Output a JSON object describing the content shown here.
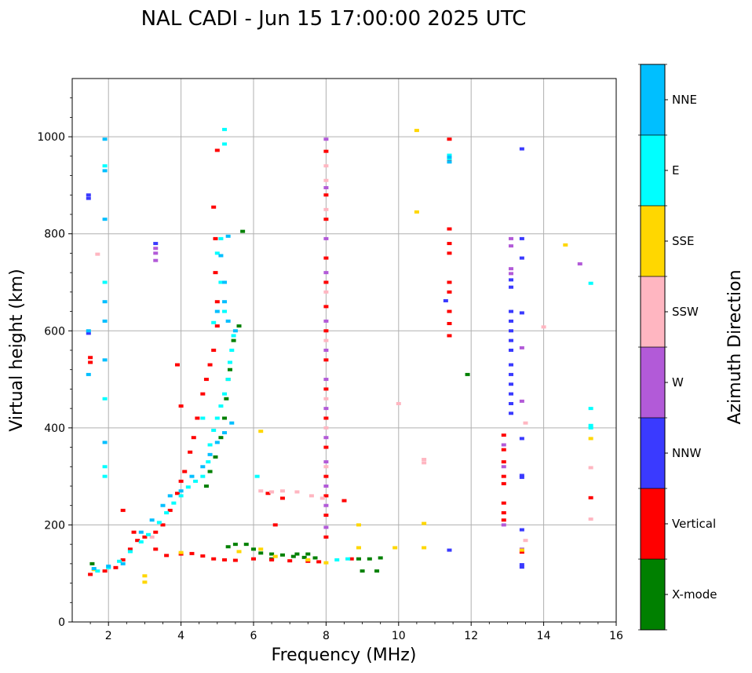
{
  "chart_data": {
    "type": "scatter",
    "title": "NAL CADI - Jun 15 17:00:00 2025 UTC",
    "xlabel": "Frequency (MHz)",
    "ylabel": "Virtual height (km)",
    "xlim": [
      1,
      16
    ],
    "ylim": [
      0,
      1120
    ],
    "xticks": [
      2,
      4,
      6,
      8,
      10,
      12,
      14,
      16
    ],
    "yticks": [
      0,
      200,
      400,
      600,
      800,
      1000
    ],
    "grid": true,
    "colorbar": {
      "title": "Azimuth Direction",
      "categories": [
        {
          "label": "X-mode",
          "color": "#008000"
        },
        {
          "label": "Vertical",
          "color": "#ff0000"
        },
        {
          "label": "NNW",
          "color": "#3a3aff"
        },
        {
          "label": "W",
          "color": "#b25ad8"
        },
        {
          "label": "SSW",
          "color": "#ffb6c1"
        },
        {
          "label": "SSE",
          "color": "#ffd700"
        },
        {
          "label": "E",
          "color": "#00ffff"
        },
        {
          "label": "NNE",
          "color": "#00bfff"
        }
      ]
    },
    "series": [
      {
        "name": "X-mode",
        "points": [
          [
            5.3,
            155
          ],
          [
            5.5,
            160
          ],
          [
            5.8,
            160
          ],
          [
            6.0,
            150
          ],
          [
            6.2,
            142
          ],
          [
            6.5,
            140
          ],
          [
            6.8,
            138
          ],
          [
            7.1,
            135
          ],
          [
            7.4,
            133
          ],
          [
            7.7,
            132
          ],
          [
            8.9,
            130
          ],
          [
            9.2,
            130
          ],
          [
            9.5,
            132
          ],
          [
            9.0,
            105
          ],
          [
            9.4,
            105
          ],
          [
            7.2,
            140
          ],
          [
            7.5,
            140
          ],
          [
            5.45,
            580
          ],
          [
            5.6,
            610
          ],
          [
            5.35,
            520
          ],
          [
            5.25,
            460
          ],
          [
            5.2,
            420
          ],
          [
            5.1,
            380
          ],
          [
            5.3,
            500
          ],
          [
            4.95,
            340
          ],
          [
            4.8,
            310
          ],
          [
            4.7,
            280
          ],
          [
            5.7,
            805
          ],
          [
            11.9,
            510
          ],
          [
            1.55,
            120
          ],
          [
            6.5,
            130
          ]
        ]
      },
      {
        "name": "Vertical",
        "points": [
          [
            1.5,
            98
          ],
          [
            1.9,
            105
          ],
          [
            2.2,
            112
          ],
          [
            2.4,
            128
          ],
          [
            2.6,
            150
          ],
          [
            2.8,
            168
          ],
          [
            3.0,
            175
          ],
          [
            3.3,
            185
          ],
          [
            3.5,
            200
          ],
          [
            3.7,
            230
          ],
          [
            3.9,
            265
          ],
          [
            4.0,
            290
          ],
          [
            4.1,
            310
          ],
          [
            4.25,
            350
          ],
          [
            4.35,
            380
          ],
          [
            4.45,
            420
          ],
          [
            4.6,
            470
          ],
          [
            4.7,
            500
          ],
          [
            4.8,
            530
          ],
          [
            4.9,
            560
          ],
          [
            5.0,
            610
          ],
          [
            5.0,
            660
          ],
          [
            4.95,
            720
          ],
          [
            4.95,
            790
          ],
          [
            4.9,
            855
          ],
          [
            5.0,
            972
          ],
          [
            3.9,
            530
          ],
          [
            4.0,
            445
          ],
          [
            3.6,
            137
          ],
          [
            4.0,
            140
          ],
          [
            4.3,
            141
          ],
          [
            4.6,
            136
          ],
          [
            4.9,
            130
          ],
          [
            5.2,
            128
          ],
          [
            5.5,
            127
          ],
          [
            6.0,
            130
          ],
          [
            6.5,
            128
          ],
          [
            7.0,
            126
          ],
          [
            7.5,
            125
          ],
          [
            7.8,
            124
          ],
          [
            8.7,
            130
          ],
          [
            8.5,
            250
          ],
          [
            6.4,
            265
          ],
          [
            6.8,
            255
          ],
          [
            6.6,
            200
          ],
          [
            2.4,
            230
          ],
          [
            2.7,
            185
          ],
          [
            3.3,
            150
          ],
          [
            11.4,
            995
          ],
          [
            11.4,
            950
          ],
          [
            11.4,
            810
          ],
          [
            11.4,
            780
          ],
          [
            11.4,
            760
          ],
          [
            11.4,
            700
          ],
          [
            11.4,
            680
          ],
          [
            11.4,
            640
          ],
          [
            11.4,
            615
          ],
          [
            11.4,
            590
          ],
          [
            12.9,
            385
          ],
          [
            12.9,
            355
          ],
          [
            12.9,
            330
          ],
          [
            12.9,
            300
          ],
          [
            12.9,
            285
          ],
          [
            12.9,
            245
          ],
          [
            12.9,
            225
          ],
          [
            12.9,
            210
          ],
          [
            1.5,
            545
          ],
          [
            1.5,
            535
          ],
          [
            15.3,
            256
          ],
          [
            13.4,
            144
          ],
          [
            8.0,
            970
          ],
          [
            8.0,
            880
          ],
          [
            8.0,
            830
          ],
          [
            8.0,
            750
          ],
          [
            8.0,
            700
          ],
          [
            8.0,
            650
          ],
          [
            8.0,
            600
          ],
          [
            8.0,
            540
          ],
          [
            8.0,
            480
          ],
          [
            8.0,
            420
          ],
          [
            8.0,
            360
          ],
          [
            8.0,
            300
          ],
          [
            8.0,
            260
          ],
          [
            8.0,
            220
          ],
          [
            8.0,
            175
          ]
        ]
      },
      {
        "name": "NNW",
        "points": [
          [
            1.45,
            880
          ],
          [
            1.45,
            873
          ],
          [
            1.45,
            595
          ],
          [
            3.3,
            780
          ],
          [
            13.1,
            640
          ],
          [
            13.1,
            620
          ],
          [
            13.1,
            600
          ],
          [
            13.1,
            580
          ],
          [
            13.1,
            560
          ],
          [
            13.1,
            530
          ],
          [
            13.1,
            510
          ],
          [
            13.1,
            490
          ],
          [
            13.1,
            470
          ],
          [
            13.1,
            450
          ],
          [
            13.1,
            430
          ],
          [
            13.1,
            705
          ],
          [
            13.1,
            690
          ],
          [
            13.4,
            975
          ],
          [
            13.4,
            790
          ],
          [
            13.4,
            750
          ],
          [
            13.4,
            637
          ],
          [
            13.4,
            378
          ],
          [
            13.4,
            302
          ],
          [
            13.4,
            298
          ],
          [
            13.4,
            190
          ],
          [
            13.4,
            118
          ],
          [
            13.4,
            113
          ],
          [
            11.3,
            662
          ],
          [
            11.4,
            148
          ]
        ]
      },
      {
        "name": "W",
        "points": [
          [
            3.3,
            770
          ],
          [
            3.3,
            760
          ],
          [
            3.3,
            745
          ],
          [
            13.1,
            790
          ],
          [
            13.1,
            775
          ],
          [
            13.1,
            728
          ],
          [
            13.1,
            718
          ],
          [
            13.4,
            565
          ],
          [
            13.4,
            455
          ],
          [
            13.4,
            150
          ],
          [
            12.9,
            365
          ],
          [
            12.9,
            320
          ],
          [
            12.9,
            200
          ],
          [
            15.0,
            738
          ],
          [
            8.0,
            995
          ],
          [
            8.0,
            895
          ],
          [
            8.0,
            790
          ],
          [
            8.0,
            720
          ],
          [
            8.0,
            620
          ],
          [
            8.0,
            560
          ],
          [
            8.0,
            500
          ],
          [
            8.0,
            440
          ],
          [
            8.0,
            380
          ],
          [
            8.0,
            330
          ],
          [
            8.0,
            280
          ],
          [
            8.0,
            240
          ],
          [
            8.0,
            195
          ]
        ]
      },
      {
        "name": "SSW",
        "points": [
          [
            1.7,
            758
          ],
          [
            3.2,
            175
          ],
          [
            6.2,
            270
          ],
          [
            6.5,
            268
          ],
          [
            6.8,
            270
          ],
          [
            7.2,
            268
          ],
          [
            7.6,
            260
          ],
          [
            7.9,
            255
          ],
          [
            10.0,
            450
          ],
          [
            10.7,
            335
          ],
          [
            10.7,
            328
          ],
          [
            13.5,
            410
          ],
          [
            13.5,
            168
          ],
          [
            14.0,
            608
          ],
          [
            15.3,
            318
          ],
          [
            15.3,
            212
          ],
          [
            8.0,
            940
          ],
          [
            8.0,
            910
          ],
          [
            8.0,
            850
          ],
          [
            8.0,
            680
          ],
          [
            8.0,
            580
          ],
          [
            8.0,
            460
          ],
          [
            8.0,
            400
          ],
          [
            8.0,
            320
          ]
        ]
      },
      {
        "name": "SSE",
        "points": [
          [
            1.6,
            108
          ],
          [
            3.0,
            95
          ],
          [
            3.0,
            82
          ],
          [
            4.0,
            143
          ],
          [
            6.2,
            393
          ],
          [
            6.2,
            150
          ],
          [
            6.6,
            135
          ],
          [
            7.5,
            128
          ],
          [
            8.0,
            122
          ],
          [
            8.9,
            200
          ],
          [
            8.9,
            153
          ],
          [
            9.9,
            153
          ],
          [
            10.5,
            1013
          ],
          [
            10.5,
            845
          ],
          [
            10.7,
            203
          ],
          [
            10.7,
            153
          ],
          [
            13.4,
            148
          ],
          [
            14.6,
            777
          ],
          [
            15.3,
            378
          ],
          [
            5.6,
            145
          ]
        ]
      },
      {
        "name": "E",
        "points": [
          [
            1.7,
            105
          ],
          [
            2.0,
            112
          ],
          [
            2.3,
            125
          ],
          [
            2.6,
            145
          ],
          [
            2.9,
            165
          ],
          [
            3.1,
            180
          ],
          [
            3.4,
            205
          ],
          [
            3.6,
            225
          ],
          [
            3.8,
            245
          ],
          [
            4.0,
            260
          ],
          [
            4.2,
            278
          ],
          [
            4.4,
            290
          ],
          [
            4.6,
            300
          ],
          [
            4.75,
            330
          ],
          [
            4.8,
            365
          ],
          [
            4.9,
            395
          ],
          [
            5.0,
            420
          ],
          [
            5.1,
            445
          ],
          [
            5.2,
            470
          ],
          [
            5.3,
            500
          ],
          [
            5.35,
            535
          ],
          [
            5.4,
            560
          ],
          [
            5.45,
            590
          ],
          [
            5.2,
            640
          ],
          [
            5.1,
            700
          ],
          [
            5.0,
            760
          ],
          [
            5.1,
            790
          ],
          [
            5.2,
            985
          ],
          [
            5.2,
            1015
          ],
          [
            4.9,
            617
          ],
          [
            4.6,
            420
          ],
          [
            6.1,
            300
          ],
          [
            8.3,
            128
          ],
          [
            8.6,
            130
          ],
          [
            15.3,
            698
          ],
          [
            15.3,
            440
          ],
          [
            15.3,
            405
          ],
          [
            15.3,
            400
          ],
          [
            11.4,
            962
          ],
          [
            11.4,
            955
          ],
          [
            1.9,
            940
          ],
          [
            1.9,
            700
          ],
          [
            1.9,
            460
          ],
          [
            1.9,
            320
          ],
          [
            1.9,
            300
          ]
        ]
      },
      {
        "name": "NNE",
        "points": [
          [
            1.45,
            600
          ],
          [
            1.45,
            510
          ],
          [
            1.6,
            110
          ],
          [
            2.0,
            115
          ],
          [
            2.4,
            120
          ],
          [
            2.9,
            185
          ],
          [
            3.2,
            210
          ],
          [
            3.5,
            240
          ],
          [
            3.7,
            260
          ],
          [
            4.0,
            270
          ],
          [
            4.3,
            300
          ],
          [
            4.6,
            320
          ],
          [
            4.8,
            345
          ],
          [
            5.0,
            370
          ],
          [
            5.2,
            390
          ],
          [
            5.4,
            410
          ],
          [
            5.5,
            600
          ],
          [
            5.3,
            620
          ],
          [
            5.2,
            660
          ],
          [
            5.2,
            700
          ],
          [
            5.1,
            755
          ],
          [
            5.3,
            795
          ],
          [
            5.0,
            640
          ],
          [
            1.9,
            995
          ],
          [
            1.9,
            930
          ],
          [
            1.9,
            830
          ],
          [
            1.9,
            660
          ],
          [
            1.9,
            620
          ],
          [
            1.9,
            540
          ],
          [
            1.9,
            370
          ],
          [
            11.4,
            958
          ],
          [
            11.4,
            948
          ]
        ]
      }
    ]
  }
}
